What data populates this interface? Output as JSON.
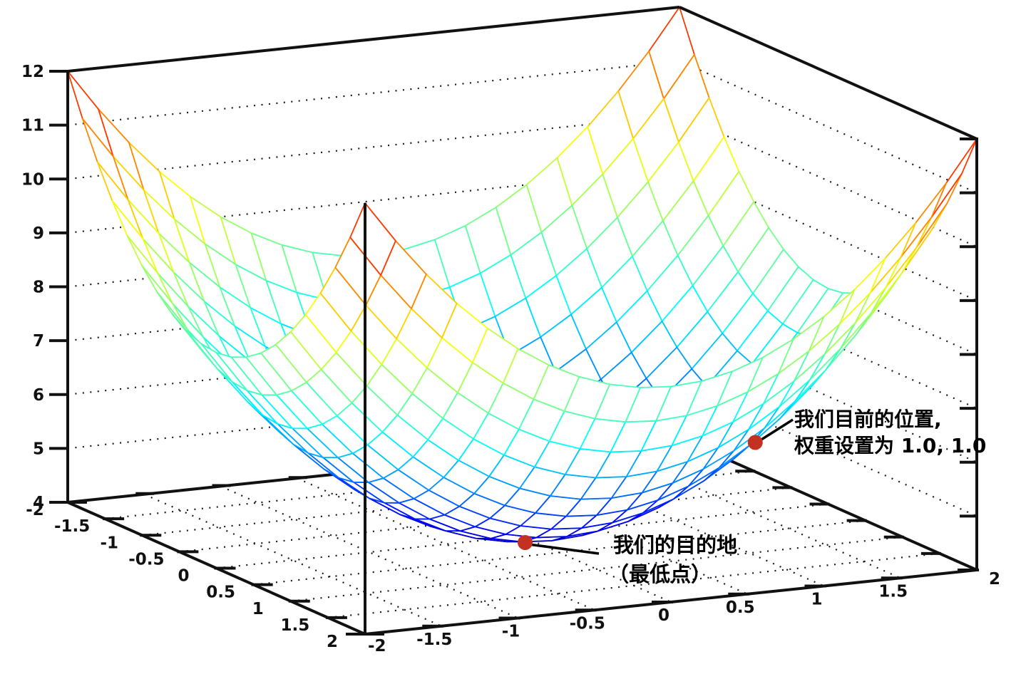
{
  "chart_data": {
    "type": "surface",
    "title": "",
    "function": "z = x^2 + y^2 + 4",
    "x_range": [
      -2,
      2
    ],
    "y_range": [
      -2,
      2
    ],
    "z_range": [
      4,
      12
    ],
    "x_ticks": [
      -2,
      -1.5,
      -1,
      -0.5,
      0,
      0.5,
      1,
      1.5,
      2
    ],
    "y_ticks": [
      -2,
      -1.5,
      -1,
      -0.5,
      0,
      0.5,
      1,
      1.5,
      2
    ],
    "z_ticks": [
      4,
      5,
      6,
      7,
      8,
      9,
      10,
      11,
      12
    ],
    "wall_grid_z": [
      5,
      6,
      7,
      8,
      9,
      10,
      11
    ],
    "floor_grid_ticks": [
      -1.5,
      -1,
      -0.5,
      0,
      0.5,
      1,
      1.5
    ],
    "mesh_step": 0.2,
    "colormap": "jet",
    "style": "wireframe mesh with hidden-line removal, dotted wall and floor grid",
    "grid": true,
    "legend": false,
    "marked_points": [
      {
        "x": 1.0,
        "y": 1.0,
        "z": 6.0,
        "label": "我们目前的位置，权重设置为 1.0, 1.0"
      },
      {
        "x": 0.0,
        "y": 0.0,
        "z": 4.0,
        "label": "我们的目的地（最低点）"
      }
    ],
    "minimum_point": {
      "x": 0,
      "y": 0,
      "z": 4
    }
  },
  "annotations": {
    "current": {
      "line1": "我们目前的位置,",
      "line2": "权重设置为 1.0, 1.0"
    },
    "destination": {
      "line1": "我们的目的地",
      "line2": "（最低点）"
    }
  },
  "colors": {
    "marker": "#c33122",
    "axis": "#111111",
    "grid_dots": "#1a1a1a",
    "background": "#ffffff",
    "annotation_text": "#000000"
  }
}
